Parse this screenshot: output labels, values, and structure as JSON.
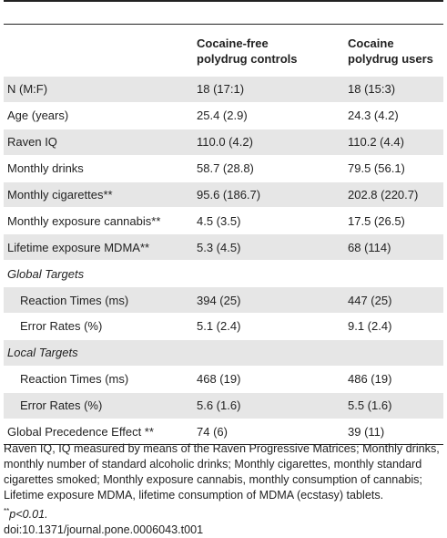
{
  "table": {
    "header": {
      "columns": [
        [
          "Cocaine-free",
          "polydrug controls"
        ],
        [
          "Cocaine",
          "polydrug users"
        ]
      ]
    },
    "body": [
      [
        "N (M:F)",
        "18 (17:1)",
        "18 (15:3)"
      ],
      [
        "Age (years)",
        "25.4 (2.9)",
        "24.3 (4.2)"
      ],
      [
        "Raven IQ",
        "110.0 (4.2)",
        "110.2 (4.4)"
      ],
      [
        "Monthly drinks",
        "58.7 (28.8)",
        "79.5 (56.1)"
      ],
      [
        "Monthly cigarettes**",
        "95.6 (186.7)",
        "202.8 (220.7)"
      ],
      [
        "Monthly exposure cannabis**",
        "4.5 (3.5)",
        "17.5 (26.5)"
      ],
      [
        "Lifetime exposure MDMA**",
        "5.3 (4.5)",
        "68 (114)"
      ],
      {
        "section": "Global Targets",
        "rows": [
          [
            "Reaction Times (ms)",
            "394 (25)",
            "447 (25)"
          ],
          [
            "Error Rates (%)",
            "5.1 (2.4)",
            "9.1 (2.4)"
          ]
        ]
      },
      {
        "section": "Local Targets",
        "rows": [
          [
            "Reaction Times (ms)",
            "468 (19)",
            "486 (19)"
          ],
          [
            "Error Rates (%)",
            "5.6 (1.6)",
            "5.5 (1.6)"
          ]
        ]
      },
      [
        "Global Precedence Effect **",
        "74 (6)",
        "39 (11)"
      ]
    ]
  },
  "footnote": {
    "note": "Raven IQ, IQ measured by means of the Raven Progressive Matrices; Monthly drinks, monthly number of standard alcoholic drinks; Monthly cigarettes, monthly standard cigarettes smoked; Monthly exposure cannabis, monthly consumption of cannabis; Lifetime exposure MDMA, lifetime consumption of MDMA (ecstasy) tablets.",
    "significance": {
      "marker": "**",
      "text": "p<0.01."
    },
    "doi": "doi:10.1371/journal.pone.0006043.t001"
  }
}
